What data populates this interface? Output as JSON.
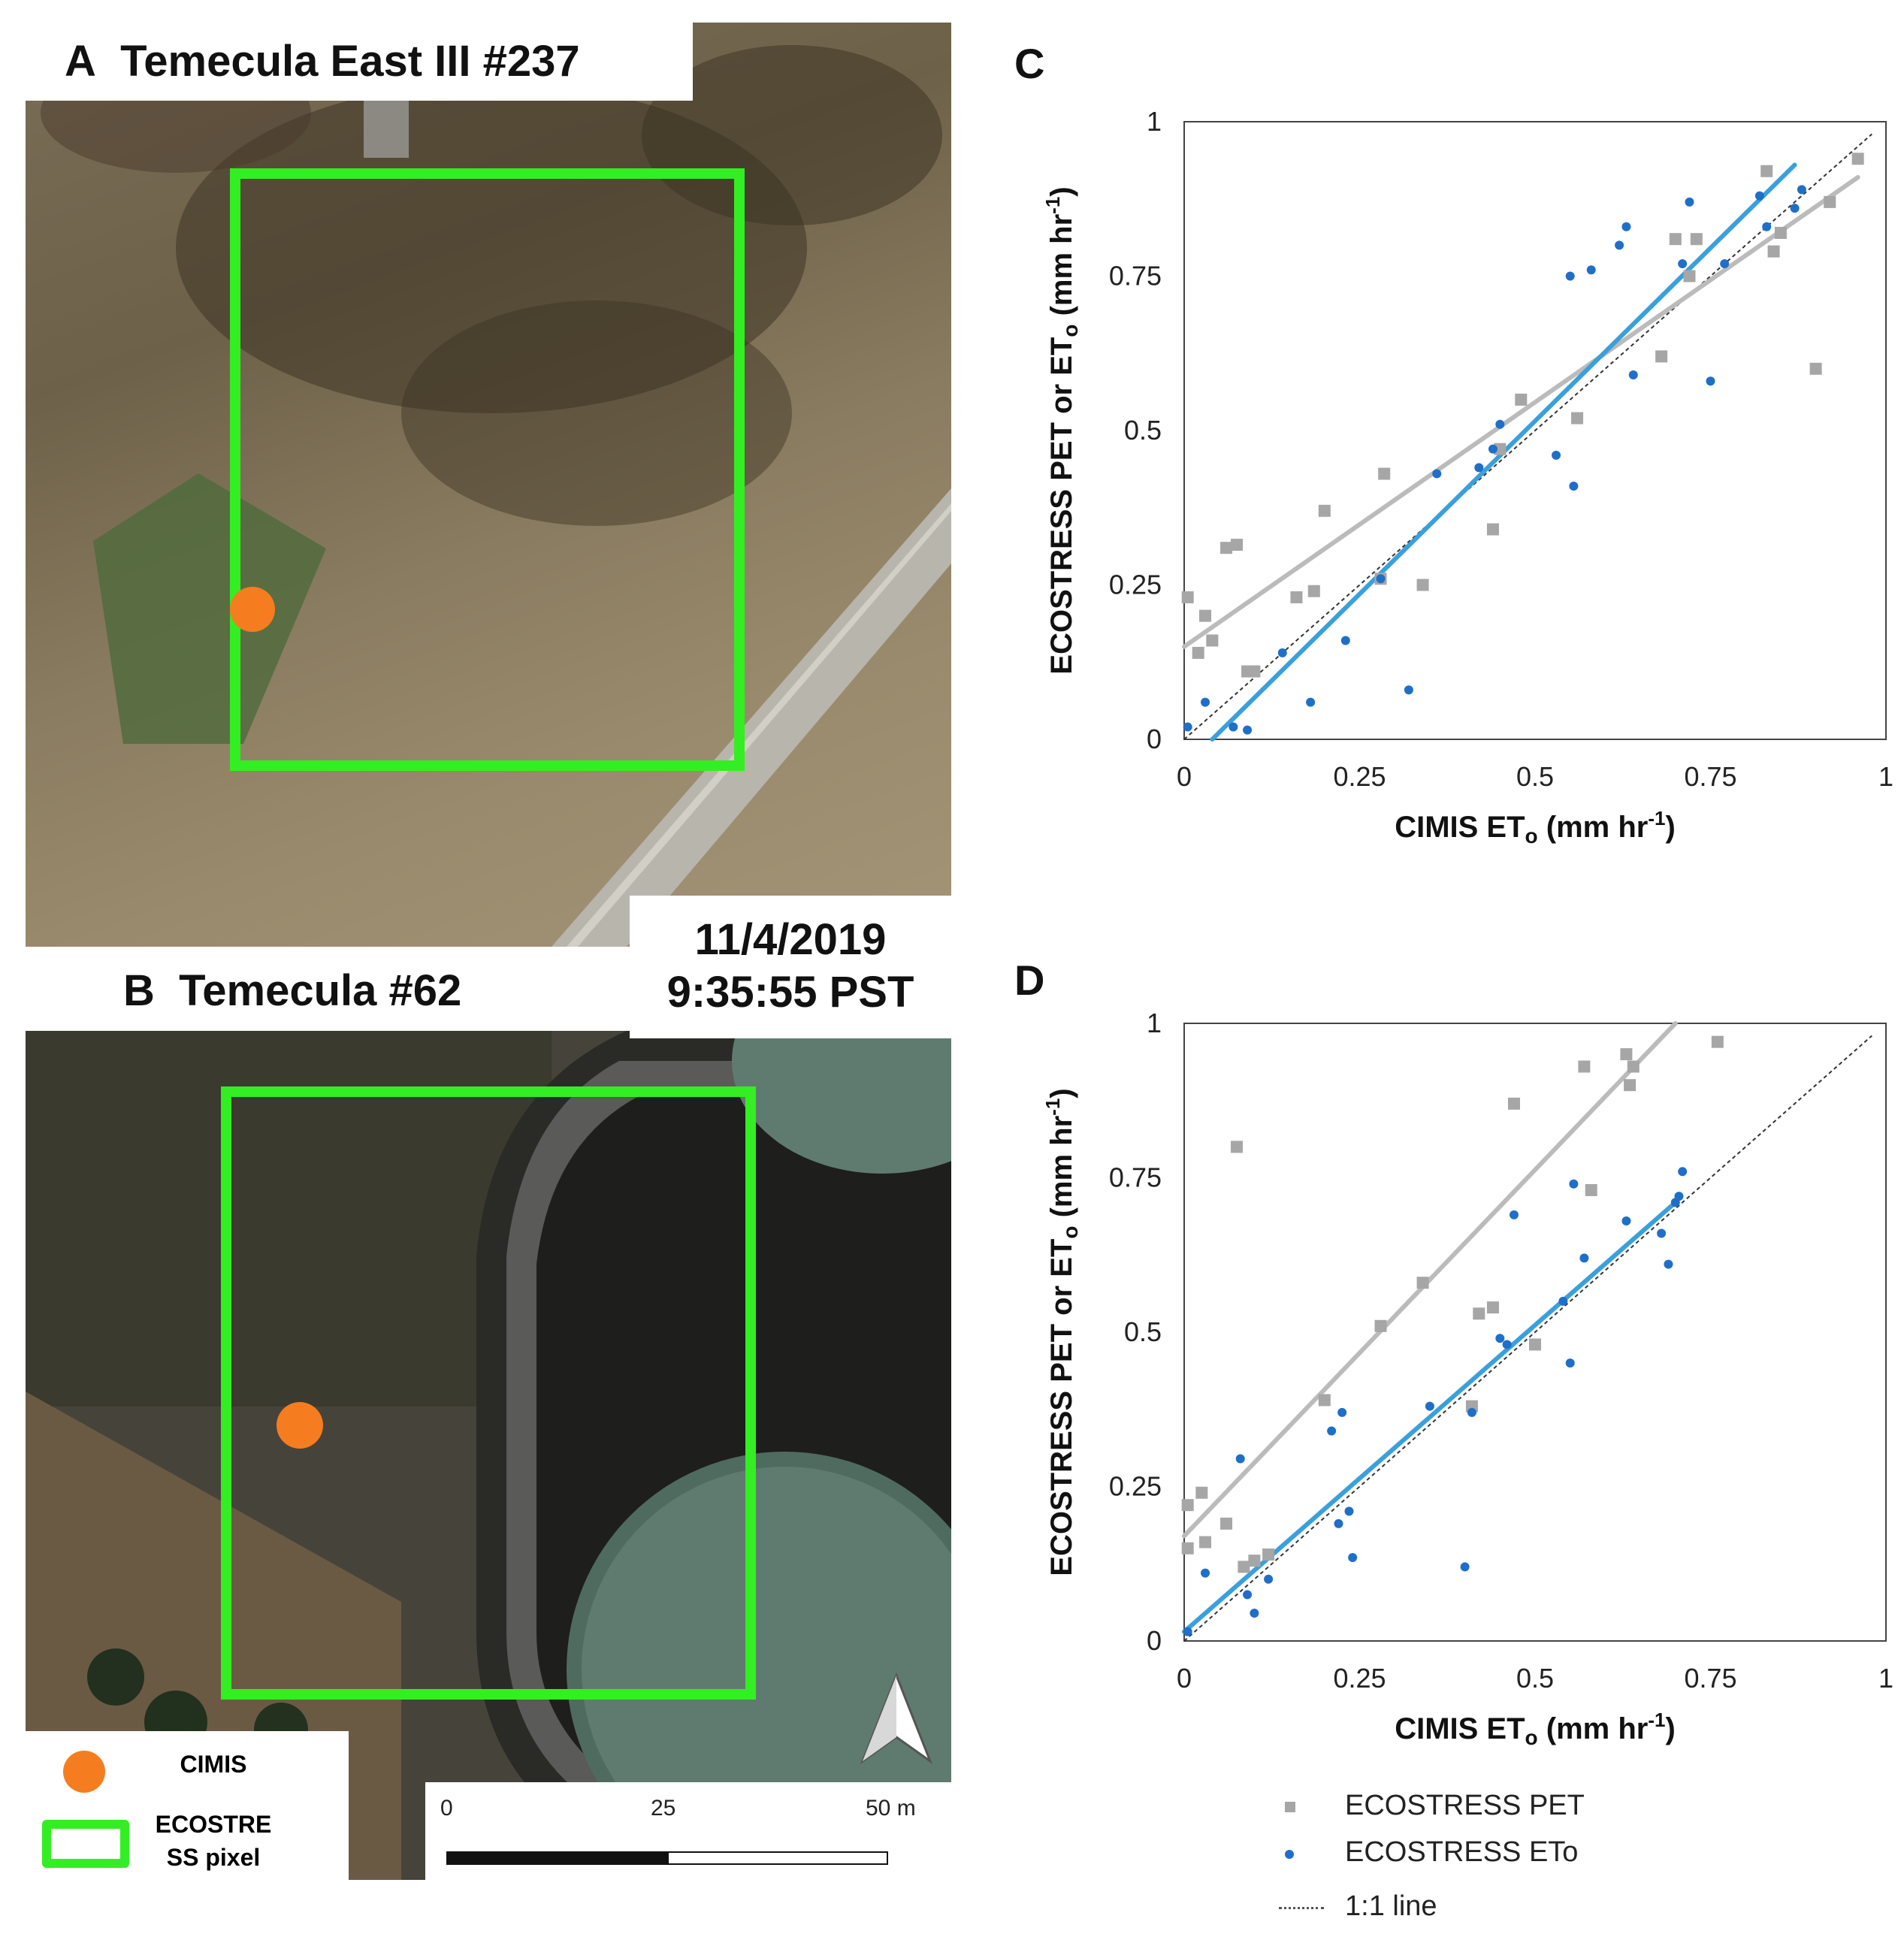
{
  "panelA": {
    "letter": "A",
    "title": "Temecula East III #237"
  },
  "panelB": {
    "letter": "B",
    "title": "Temecula #62"
  },
  "timestamp": {
    "date": "11/4/2019",
    "time": "9:35:55 PST"
  },
  "map_legend": {
    "station_label": "CIMIS",
    "pixel_label_line1": "ECOSTRE",
    "pixel_label_line2": "SS pixel"
  },
  "scalebar": {
    "ticks": [
      "0",
      "25",
      "50 m"
    ]
  },
  "colors": {
    "station": "#f57d1f",
    "pixel_box": "#33ee22",
    "pet": "#a6a6a6",
    "eto": "#1f6fc9",
    "eto_fit": "#3aa0dc",
    "pet_fit": "#bbbbbb"
  },
  "icons": [
    "north-arrow-icon"
  ],
  "chart_data": [
    {
      "panel": "C",
      "type": "scatter",
      "xlabel": "CIMIS ET",
      "xlabel_sub": "o",
      "xlabel_unit": " (mm hr",
      "xlabel_exp": "-1",
      "ylabel": "ECOSTRESS PET or ET",
      "ylabel_sub": "o",
      "ylabel_unit": " (mm hr",
      "ylabel_exp": "-1",
      "xlim": [
        0,
        1
      ],
      "ylim": [
        0,
        1
      ],
      "xticks": [
        "0",
        "0.25",
        "0.5",
        "0.75",
        "1"
      ],
      "yticks": [
        "0",
        "0.25",
        "0.5",
        "0.75",
        "1"
      ],
      "series": [
        {
          "name": "ECOSTRESS PET",
          "marker": "square",
          "points": [
            [
              0.005,
              0.23
            ],
            [
              0.03,
              0.2
            ],
            [
              0.02,
              0.14
            ],
            [
              0.04,
              0.16
            ],
            [
              0.06,
              0.31
            ],
            [
              0.075,
              0.315
            ],
            [
              0.09,
              0.11
            ],
            [
              0.1,
              0.11
            ],
            [
              0.16,
              0.23
            ],
            [
              0.185,
              0.24
            ],
            [
              0.2,
              0.37
            ],
            [
              0.28,
              0.26
            ],
            [
              0.285,
              0.43
            ],
            [
              0.34,
              0.25
            ],
            [
              0.44,
              0.34
            ],
            [
              0.45,
              0.47
            ],
            [
              0.48,
              0.55
            ],
            [
              0.56,
              0.52
            ],
            [
              0.68,
              0.62
            ],
            [
              0.7,
              0.81
            ],
            [
              0.72,
              0.75
            ],
            [
              0.73,
              0.81
            ],
            [
              0.83,
              0.92
            ],
            [
              0.84,
              0.79
            ],
            [
              0.85,
              0.82
            ],
            [
              0.9,
              0.6
            ],
            [
              0.92,
              0.87
            ],
            [
              0.96,
              0.94
            ]
          ]
        },
        {
          "name": "ECOSTRESS ETo",
          "marker": "dot",
          "points": [
            [
              0.005,
              0.02
            ],
            [
              0.03,
              0.06
            ],
            [
              0.07,
              0.02
            ],
            [
              0.09,
              0.015
            ],
            [
              0.14,
              0.14
            ],
            [
              0.18,
              0.06
            ],
            [
              0.23,
              0.16
            ],
            [
              0.28,
              0.26
            ],
            [
              0.32,
              0.08
            ],
            [
              0.36,
              0.43
            ],
            [
              0.42,
              0.44
            ],
            [
              0.44,
              0.47
            ],
            [
              0.45,
              0.51
            ],
            [
              0.53,
              0.46
            ],
            [
              0.55,
              0.75
            ],
            [
              0.555,
              0.41
            ],
            [
              0.58,
              0.76
            ],
            [
              0.62,
              0.8
            ],
            [
              0.63,
              0.83
            ],
            [
              0.64,
              0.59
            ],
            [
              0.71,
              0.77
            ],
            [
              0.72,
              0.87
            ],
            [
              0.75,
              0.58
            ],
            [
              0.77,
              0.77
            ],
            [
              0.82,
              0.88
            ],
            [
              0.83,
              0.83
            ],
            [
              0.87,
              0.86
            ],
            [
              0.88,
              0.89
            ]
          ]
        }
      ],
      "fits": [
        {
          "series": "ECOSTRESS PET",
          "x": [
            0,
            0.96
          ],
          "y": [
            0.15,
            0.91
          ]
        },
        {
          "series": "ECOSTRESS ETo",
          "x": [
            0.04,
            0.87
          ],
          "y": [
            0.0,
            0.93
          ]
        }
      ],
      "reference_line": {
        "name": "1:1 line",
        "x": [
          0,
          0.98
        ],
        "y": [
          0,
          0.98
        ]
      }
    },
    {
      "panel": "D",
      "type": "scatter",
      "xlabel": "CIMIS ET",
      "xlabel_sub": "o",
      "xlabel_unit": " (mm hr",
      "xlabel_exp": "-1",
      "ylabel": "ECOSTRESS PET or ET",
      "ylabel_sub": "o",
      "ylabel_unit": " (mm hr",
      "ylabel_exp": "-1",
      "xlim": [
        0,
        1
      ],
      "ylim": [
        0,
        1
      ],
      "xticks": [
        "0",
        "0.25",
        "0.5",
        "0.75",
        "1"
      ],
      "yticks": [
        "0",
        "0.25",
        "0.5",
        "0.75",
        "1"
      ],
      "series": [
        {
          "name": "ECOSTRESS PET",
          "marker": "square",
          "points": [
            [
              0.005,
              0.22
            ],
            [
              0.005,
              0.15
            ],
            [
              0.025,
              0.24
            ],
            [
              0.03,
              0.16
            ],
            [
              0.06,
              0.19
            ],
            [
              0.075,
              0.8
            ],
            [
              0.085,
              0.12
            ],
            [
              0.1,
              0.13
            ],
            [
              0.12,
              0.14
            ],
            [
              0.2,
              0.39
            ],
            [
              0.28,
              0.51
            ],
            [
              0.34,
              0.58
            ],
            [
              0.41,
              0.38
            ],
            [
              0.42,
              0.53
            ],
            [
              0.44,
              0.54
            ],
            [
              0.47,
              0.87
            ],
            [
              0.5,
              0.48
            ],
            [
              0.57,
              0.93
            ],
            [
              0.58,
              0.73
            ],
            [
              0.63,
              0.95
            ],
            [
              0.635,
              0.9
            ],
            [
              0.64,
              0.93
            ],
            [
              0.76,
              0.97
            ]
          ]
        },
        {
          "name": "ECOSTRESS ETo",
          "marker": "dot",
          "points": [
            [
              0.005,
              0.015
            ],
            [
              0.03,
              0.11
            ],
            [
              0.08,
              0.295
            ],
            [
              0.09,
              0.075
            ],
            [
              0.1,
              0.045
            ],
            [
              0.12,
              0.1
            ],
            [
              0.21,
              0.34
            ],
            [
              0.22,
              0.19
            ],
            [
              0.225,
              0.37
            ],
            [
              0.235,
              0.21
            ],
            [
              0.24,
              0.135
            ],
            [
              0.35,
              0.38
            ],
            [
              0.4,
              0.12
            ],
            [
              0.41,
              0.37
            ],
            [
              0.45,
              0.49
            ],
            [
              0.46,
              0.48
            ],
            [
              0.47,
              0.69
            ],
            [
              0.54,
              0.55
            ],
            [
              0.55,
              0.45
            ],
            [
              0.555,
              0.74
            ],
            [
              0.57,
              0.62
            ],
            [
              0.63,
              0.68
            ],
            [
              0.68,
              0.66
            ],
            [
              0.69,
              0.61
            ],
            [
              0.7,
              0.71
            ],
            [
              0.705,
              0.72
            ],
            [
              0.71,
              0.76
            ]
          ]
        }
      ],
      "fits": [
        {
          "series": "ECOSTRESS PET",
          "x": [
            0,
            0.7
          ],
          "y": [
            0.17,
            1.0
          ]
        },
        {
          "series": "ECOSTRESS ETo",
          "x": [
            0,
            0.7
          ],
          "y": [
            0.015,
            0.71
          ]
        }
      ],
      "reference_line": {
        "name": "1:1 line",
        "x": [
          0,
          0.98
        ],
        "y": [
          0,
          0.98
        ]
      }
    }
  ],
  "chart_legend": [
    {
      "label": "ECOSTRESS PET",
      "marker": "square"
    },
    {
      "label": "ECOSTRESS ETo",
      "marker": "dot"
    },
    {
      "label": "1:1 line",
      "marker": "dashed-line"
    }
  ]
}
